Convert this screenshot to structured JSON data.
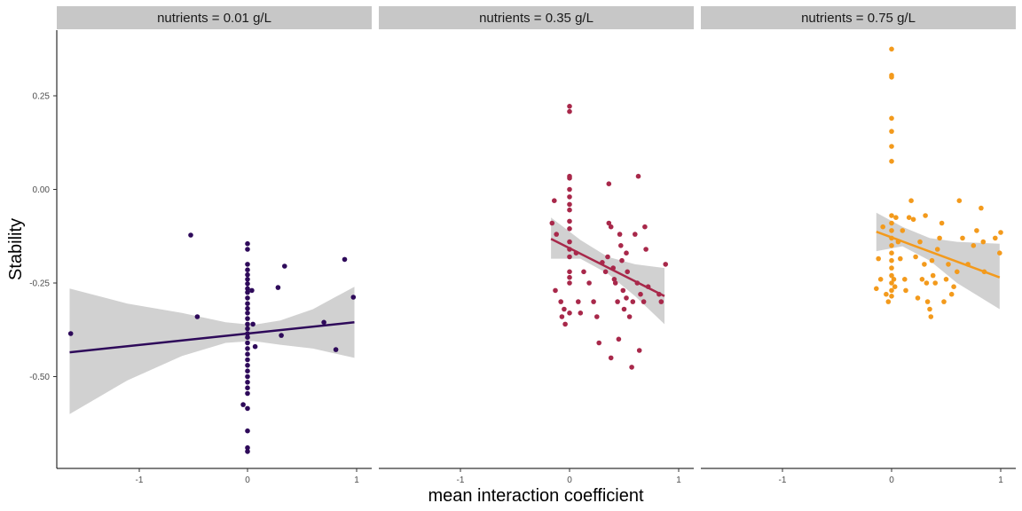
{
  "chart_data": {
    "type": "scatter",
    "xlabel": "mean interaction coefficient",
    "ylabel": "Stability",
    "xlim": [
      -1.75,
      1.02
    ],
    "ylim": [
      -0.745,
      0.4
    ],
    "x_ticks": [
      -1,
      0,
      1
    ],
    "y_ticks": [
      0.25,
      0.0,
      -0.25,
      -0.5
    ],
    "x_tick_labels": [
      "-1",
      "0",
      "1"
    ],
    "y_tick_labels": [
      "0.25",
      "0.00",
      "-0.25",
      "-0.50"
    ],
    "grid": false,
    "legend": "none",
    "strip_color": "#c7c7c7",
    "ribbon_color": "#bdbdbd",
    "panels": [
      {
        "label": "nutrients = 0.01 g/L",
        "color": "#2e0a5a",
        "fit": {
          "x1": -1.63,
          "y1": -0.435,
          "x2": 0.98,
          "y2": -0.355
        },
        "band": [
          {
            "x": -1.63,
            "lo": -0.6,
            "hi": -0.265
          },
          {
            "x": -1.1,
            "lo": -0.51,
            "hi": -0.305
          },
          {
            "x": -0.6,
            "lo": -0.445,
            "hi": -0.33
          },
          {
            "x": -0.2,
            "lo": -0.41,
            "hi": -0.355
          },
          {
            "x": 0.05,
            "lo": -0.405,
            "hi": -0.362
          },
          {
            "x": 0.3,
            "lo": -0.415,
            "hi": -0.35
          },
          {
            "x": 0.6,
            "lo": -0.425,
            "hi": -0.32
          },
          {
            "x": 0.98,
            "lo": -0.45,
            "hi": -0.26
          }
        ],
        "points": [
          [
            -1.62,
            -0.385
          ],
          [
            -0.52,
            -0.122
          ],
          [
            -0.46,
            -0.34
          ],
          [
            0.0,
            -0.145
          ],
          [
            0.0,
            -0.16
          ],
          [
            0.0,
            -0.2
          ],
          [
            0.0,
            -0.215
          ],
          [
            0.0,
            -0.228
          ],
          [
            0.0,
            -0.24
          ],
          [
            0.0,
            -0.252
          ],
          [
            0.0,
            -0.265
          ],
          [
            0.0,
            -0.275
          ],
          [
            0.0,
            -0.29
          ],
          [
            0.0,
            -0.305
          ],
          [
            0.0,
            -0.318
          ],
          [
            0.0,
            -0.33
          ],
          [
            0.0,
            -0.345
          ],
          [
            0.0,
            -0.36
          ],
          [
            0.0,
            -0.372
          ],
          [
            0.0,
            -0.385
          ],
          [
            0.0,
            -0.395
          ],
          [
            0.0,
            -0.41
          ],
          [
            0.0,
            -0.425
          ],
          [
            0.0,
            -0.44
          ],
          [
            0.0,
            -0.455
          ],
          [
            0.0,
            -0.47
          ],
          [
            0.0,
            -0.485
          ],
          [
            0.0,
            -0.5
          ],
          [
            0.0,
            -0.515
          ],
          [
            0.0,
            -0.53
          ],
          [
            0.0,
            -0.545
          ],
          [
            -0.04,
            -0.575
          ],
          [
            0.0,
            -0.585
          ],
          [
            0.0,
            -0.645
          ],
          [
            0.0,
            -0.69
          ],
          [
            0.0,
            -0.7
          ],
          [
            0.04,
            -0.27
          ],
          [
            0.05,
            -0.36
          ],
          [
            0.07,
            -0.42
          ],
          [
            0.28,
            -0.262
          ],
          [
            0.31,
            -0.39
          ],
          [
            0.34,
            -0.205
          ],
          [
            0.7,
            -0.355
          ],
          [
            0.81,
            -0.428
          ],
          [
            0.89,
            -0.187
          ],
          [
            0.97,
            -0.288
          ]
        ]
      },
      {
        "label": "nutrients = 0.35 g/L",
        "color": "#a8284a",
        "fit": {
          "x1": -0.17,
          "y1": -0.132,
          "x2": 0.87,
          "y2": -0.285
        },
        "band": [
          {
            "x": -0.17,
            "lo": -0.185,
            "hi": -0.075
          },
          {
            "x": 0.1,
            "lo": -0.185,
            "hi": -0.135
          },
          {
            "x": 0.35,
            "lo": -0.225,
            "hi": -0.18
          },
          {
            "x": 0.6,
            "lo": -0.285,
            "hi": -0.2
          },
          {
            "x": 0.87,
            "lo": -0.36,
            "hi": -0.21
          }
        ],
        "points": [
          [
            0.0,
            0.222
          ],
          [
            0.0,
            0.208
          ],
          [
            0.0,
            0.035
          ],
          [
            0.0,
            0.03
          ],
          [
            0.0,
            0.0
          ],
          [
            0.0,
            -0.02
          ],
          [
            0.0,
            -0.04
          ],
          [
            0.0,
            -0.055
          ],
          [
            0.0,
            -0.085
          ],
          [
            0.0,
            -0.105
          ],
          [
            0.0,
            -0.14
          ],
          [
            0.0,
            -0.16
          ],
          [
            0.0,
            -0.18
          ],
          [
            0.0,
            -0.22
          ],
          [
            0.0,
            -0.235
          ],
          [
            0.0,
            -0.25
          ],
          [
            0.0,
            -0.33
          ],
          [
            -0.14,
            -0.03
          ],
          [
            -0.16,
            -0.09
          ],
          [
            -0.12,
            -0.12
          ],
          [
            -0.13,
            -0.27
          ],
          [
            -0.08,
            -0.3
          ],
          [
            -0.05,
            -0.32
          ],
          [
            -0.07,
            -0.34
          ],
          [
            -0.04,
            -0.36
          ],
          [
            0.06,
            -0.17
          ],
          [
            0.08,
            -0.3
          ],
          [
            0.1,
            -0.33
          ],
          [
            0.13,
            -0.22
          ],
          [
            0.18,
            -0.25
          ],
          [
            0.22,
            -0.3
          ],
          [
            0.25,
            -0.34
          ],
          [
            0.27,
            -0.41
          ],
          [
            0.3,
            -0.195
          ],
          [
            0.33,
            -0.22
          ],
          [
            0.35,
            -0.18
          ],
          [
            0.36,
            0.015
          ],
          [
            0.36,
            -0.09
          ],
          [
            0.38,
            -0.1
          ],
          [
            0.38,
            -0.45
          ],
          [
            0.4,
            -0.21
          ],
          [
            0.41,
            -0.24
          ],
          [
            0.42,
            -0.25
          ],
          [
            0.44,
            -0.3
          ],
          [
            0.45,
            -0.4
          ],
          [
            0.46,
            -0.12
          ],
          [
            0.47,
            -0.15
          ],
          [
            0.48,
            -0.19
          ],
          [
            0.49,
            -0.27
          ],
          [
            0.5,
            -0.32
          ],
          [
            0.52,
            -0.17
          ],
          [
            0.52,
            -0.29
          ],
          [
            0.53,
            -0.22
          ],
          [
            0.55,
            -0.34
          ],
          [
            0.57,
            -0.475
          ],
          [
            0.58,
            -0.3
          ],
          [
            0.6,
            -0.12
          ],
          [
            0.62,
            -0.25
          ],
          [
            0.63,
            0.035
          ],
          [
            0.64,
            -0.43
          ],
          [
            0.65,
            -0.28
          ],
          [
            0.68,
            -0.3
          ],
          [
            0.69,
            -0.1
          ],
          [
            0.7,
            -0.16
          ],
          [
            0.72,
            -0.26
          ],
          [
            0.82,
            -0.28
          ],
          [
            0.84,
            -0.3
          ],
          [
            0.88,
            -0.2
          ]
        ]
      },
      {
        "label": "nutrients = 0.75 g/L",
        "color": "#f39a1c",
        "fit": {
          "x1": -0.14,
          "y1": -0.113,
          "x2": 0.99,
          "y2": -0.235
        },
        "band": [
          {
            "x": -0.14,
            "lo": -0.165,
            "hi": -0.062
          },
          {
            "x": 0.1,
            "lo": -0.152,
            "hi": -0.1
          },
          {
            "x": 0.35,
            "lo": -0.19,
            "hi": -0.13
          },
          {
            "x": 0.6,
            "lo": -0.25,
            "hi": -0.14
          },
          {
            "x": 0.99,
            "lo": -0.32,
            "hi": -0.145
          }
        ],
        "points": [
          [
            0.0,
            0.375
          ],
          [
            0.0,
            0.305
          ],
          [
            0.0,
            0.3
          ],
          [
            0.0,
            0.19
          ],
          [
            0.0,
            0.155
          ],
          [
            0.0,
            0.115
          ],
          [
            0.0,
            0.075
          ],
          [
            0.0,
            -0.07
          ],
          [
            0.0,
            -0.09
          ],
          [
            0.0,
            -0.11
          ],
          [
            0.0,
            -0.13
          ],
          [
            0.0,
            -0.15
          ],
          [
            0.0,
            -0.17
          ],
          [
            0.0,
            -0.19
          ],
          [
            0.0,
            -0.21
          ],
          [
            0.0,
            -0.23
          ],
          [
            0.0,
            -0.25
          ],
          [
            0.0,
            -0.27
          ],
          [
            0.0,
            -0.285
          ],
          [
            -0.14,
            -0.265
          ],
          [
            -0.12,
            -0.185
          ],
          [
            -0.1,
            -0.24
          ],
          [
            -0.08,
            -0.1
          ],
          [
            -0.05,
            -0.28
          ],
          [
            -0.03,
            -0.3
          ],
          [
            0.02,
            -0.24
          ],
          [
            0.03,
            -0.26
          ],
          [
            0.04,
            -0.075
          ],
          [
            0.06,
            -0.14
          ],
          [
            0.08,
            -0.185
          ],
          [
            0.1,
            -0.11
          ],
          [
            0.12,
            -0.24
          ],
          [
            0.13,
            -0.27
          ],
          [
            0.16,
            -0.075
          ],
          [
            0.18,
            -0.03
          ],
          [
            0.2,
            -0.08
          ],
          [
            0.22,
            -0.18
          ],
          [
            0.24,
            -0.29
          ],
          [
            0.26,
            -0.14
          ],
          [
            0.28,
            -0.24
          ],
          [
            0.3,
            -0.2
          ],
          [
            0.31,
            -0.07
          ],
          [
            0.32,
            -0.25
          ],
          [
            0.33,
            -0.3
          ],
          [
            0.35,
            -0.32
          ],
          [
            0.36,
            -0.34
          ],
          [
            0.37,
            -0.19
          ],
          [
            0.38,
            -0.23
          ],
          [
            0.4,
            -0.25
          ],
          [
            0.42,
            -0.16
          ],
          [
            0.44,
            -0.13
          ],
          [
            0.46,
            -0.09
          ],
          [
            0.48,
            -0.3
          ],
          [
            0.5,
            -0.24
          ],
          [
            0.52,
            -0.2
          ],
          [
            0.55,
            -0.28
          ],
          [
            0.57,
            -0.26
          ],
          [
            0.6,
            -0.22
          ],
          [
            0.62,
            -0.03
          ],
          [
            0.65,
            -0.13
          ],
          [
            0.7,
            -0.2
          ],
          [
            0.75,
            -0.15
          ],
          [
            0.78,
            -0.11
          ],
          [
            0.82,
            -0.05
          ],
          [
            0.84,
            -0.14
          ],
          [
            0.85,
            -0.22
          ],
          [
            0.95,
            -0.13
          ],
          [
            0.99,
            -0.17
          ],
          [
            1.0,
            -0.115
          ]
        ]
      }
    ]
  }
}
